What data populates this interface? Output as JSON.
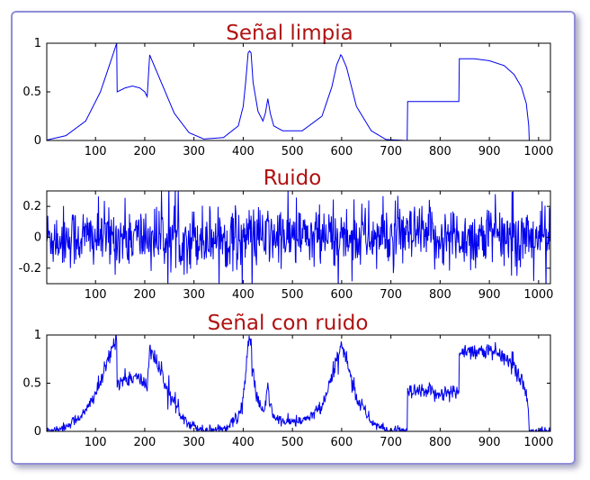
{
  "colors": {
    "line": "#0000ee",
    "title": "#b01212",
    "axis": "#000000",
    "frame_border": "#8f8fd8"
  },
  "chart_data": [
    {
      "type": "line",
      "title": "Señal limpia",
      "xlim": [
        1,
        1024
      ],
      "ylim": [
        0,
        1
      ],
      "xticks": [
        100,
        200,
        300,
        400,
        500,
        600,
        700,
        800,
        900,
        1000
      ],
      "yticks": [
        0,
        0.5,
        1
      ],
      "ytick_labels": [
        "0",
        "0.5",
        "1"
      ],
      "grid": false,
      "series": [
        {
          "x": [
            1,
            40,
            80,
            110,
            130,
            143,
            144,
            160,
            175,
            190,
            200,
            205,
            210,
            230,
            260,
            290,
            320,
            360,
            390,
            400,
            405,
            410,
            413,
            416,
            420,
            430,
            440,
            445,
            450,
            455,
            462,
            480,
            520,
            560,
            580,
            590,
            596,
            598,
            600,
            610,
            630,
            660,
            690,
            731,
            733,
            734,
            837,
            838,
            839,
            870,
            900,
            930,
            950,
            965,
            975,
            980,
            981,
            1024
          ],
          "y": [
            0.005,
            0.05,
            0.2,
            0.5,
            0.8,
            1.0,
            0.5,
            0.54,
            0.56,
            0.54,
            0.5,
            0.45,
            0.88,
            0.64,
            0.28,
            0.08,
            0.015,
            0.03,
            0.15,
            0.35,
            0.6,
            0.9,
            0.92,
            0.9,
            0.6,
            0.3,
            0.2,
            0.28,
            0.43,
            0.28,
            0.15,
            0.1,
            0.1,
            0.25,
            0.55,
            0.78,
            0.85,
            0.88,
            0.87,
            0.75,
            0.35,
            0.1,
            0.01,
            0.0,
            0.0,
            0.4,
            0.4,
            0.4,
            0.84,
            0.84,
            0.82,
            0.77,
            0.68,
            0.55,
            0.38,
            0.15,
            0.0,
            0.0
          ]
        }
      ]
    },
    {
      "type": "line",
      "title": "Ruido",
      "xlim": [
        1,
        1024
      ],
      "ylim": [
        -0.3,
        0.3
      ],
      "xticks": [
        100,
        200,
        300,
        400,
        500,
        600,
        700,
        800,
        900,
        1000
      ],
      "yticks": [
        -0.2,
        0,
        0.2
      ],
      "ytick_labels": [
        "-0.2",
        "0",
        "0.2"
      ],
      "grid": false,
      "series": [
        {
          "noise": true,
          "n": 1024,
          "std": 0.1,
          "range": [
            -0.3,
            0.3
          ]
        }
      ]
    },
    {
      "type": "line",
      "title": "Señal con ruido",
      "xlim": [
        1,
        1024
      ],
      "ylim": [
        0,
        1
      ],
      "xticks": [
        100,
        200,
        300,
        400,
        500,
        600,
        700,
        800,
        900,
        1000
      ],
      "yticks": [
        0,
        0.5,
        1
      ],
      "ytick_labels": [
        "0",
        "0.5",
        "1"
      ],
      "grid": false,
      "series": [
        {
          "composite": "clean_plus_noise",
          "noise_scale": 0.45,
          "clip": [
            0,
            1
          ]
        }
      ]
    }
  ]
}
